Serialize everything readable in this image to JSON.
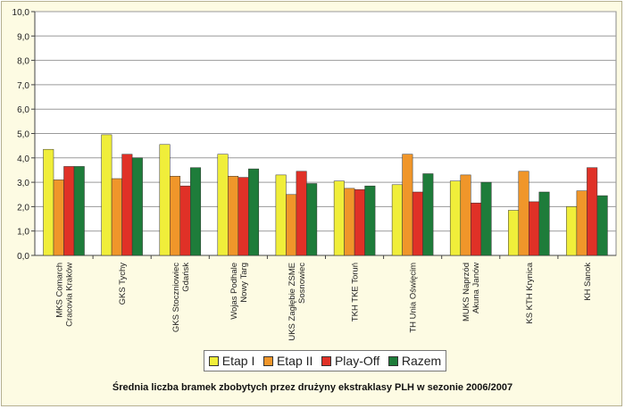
{
  "chart_data": {
    "type": "bar",
    "title": "Średnia liczba bramek zbobytych przez drużyny ekstraklasy PLH w sezonie 2006/2007",
    "categories": [
      [
        "MKS Comarch",
        "Cracovia Kraków"
      ],
      [
        "GKS Tychy"
      ],
      [
        "GKS Stoczniowiec",
        "Gdańsk"
      ],
      [
        "Wojas Podhale",
        "Nowy Targ"
      ],
      [
        "UKS Zagłębie ZSME",
        "Sosnowiec"
      ],
      [
        "TKH TKE Toruń"
      ],
      [
        "TH Unia Oświęcim"
      ],
      [
        "MUKS Naprzód",
        "Akuna Janów"
      ],
      [
        "KS KTH Krynica"
      ],
      [
        "KH Sanok"
      ]
    ],
    "series": [
      {
        "name": "Etap I",
        "color": "#f0ee3a",
        "values": [
          4.35,
          4.95,
          4.55,
          4.15,
          3.3,
          3.05,
          2.9,
          3.05,
          1.85,
          2.0
        ]
      },
      {
        "name": "Etap II",
        "color": "#f0962a",
        "values": [
          3.1,
          3.15,
          3.25,
          3.25,
          2.5,
          2.75,
          4.15,
          3.3,
          3.45,
          2.65
        ]
      },
      {
        "name": "Play-Off",
        "color": "#e03127",
        "values": [
          3.65,
          4.15,
          2.85,
          3.2,
          3.45,
          2.7,
          2.6,
          2.15,
          2.2,
          3.6
        ]
      },
      {
        "name": "Razem",
        "color": "#1e7c3a",
        "values": [
          3.65,
          4.0,
          3.6,
          3.55,
          2.95,
          2.85,
          3.35,
          3.0,
          2.6,
          2.45
        ]
      }
    ],
    "yticks": [
      "0,0",
      "1,0",
      "2,0",
      "3,0",
      "4,0",
      "5,0",
      "6,0",
      "7,0",
      "8,0",
      "9,0",
      "10,0"
    ],
    "ylim": [
      0,
      10
    ],
    "grid": true,
    "legend_position": "bottom",
    "plot_background": "#ffffff",
    "frame_background": "#fdfbe3"
  }
}
